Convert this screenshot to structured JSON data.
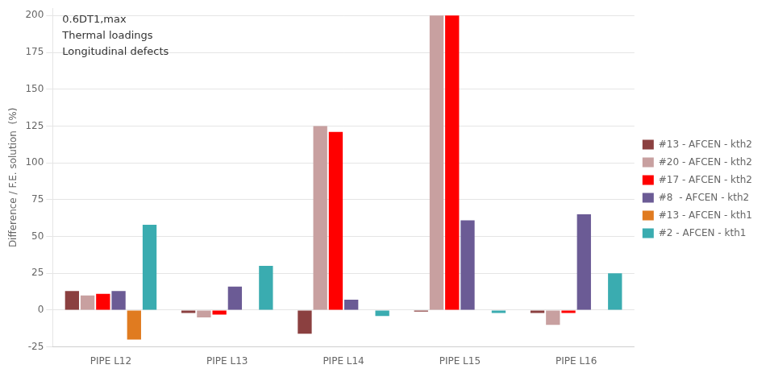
{
  "chart_data": {
    "type": "bar",
    "annotations": [
      "0.6DT1,max",
      "Thermal loadings",
      "Longitudinal defects"
    ],
    "ylabel": "Difference / F.E. solution  (%)",
    "categories": [
      "PIPE L12",
      "PIPE L13",
      "PIPE L14",
      "PIPE L15",
      "PIPE L16"
    ],
    "series": [
      {
        "name": "#13 - AFCEN - kth2",
        "color": "#8B4040",
        "values": [
          13,
          -2,
          -16,
          -1,
          -2
        ]
      },
      {
        "name": "#20 - AFCEN - kth2",
        "color": "#C8A0A0",
        "values": [
          10,
          -5,
          125,
          200,
          -10
        ]
      },
      {
        "name": "#17 - AFCEN - kth2",
        "color": "#FF0000",
        "values": [
          11,
          -3,
          121,
          200,
          -2
        ]
      },
      {
        "name": "#8  - AFCEN - kth2",
        "color": "#6B5B95",
        "values": [
          13,
          16,
          7,
          61,
          65
        ]
      },
      {
        "name": "#13 - AFCEN - kth1",
        "color": "#E07B20",
        "values": [
          -20,
          0,
          0,
          0,
          0
        ]
      },
      {
        "name": "#2 - AFCEN - kth1",
        "color": "#3AACB0",
        "values": [
          58,
          30,
          -4,
          -2,
          25
        ]
      }
    ],
    "ylim": [
      -25,
      205
    ],
    "yticks": [
      -25,
      0,
      25,
      50,
      75,
      100,
      125,
      150,
      175,
      200
    ],
    "grid": true,
    "legend": "right"
  }
}
